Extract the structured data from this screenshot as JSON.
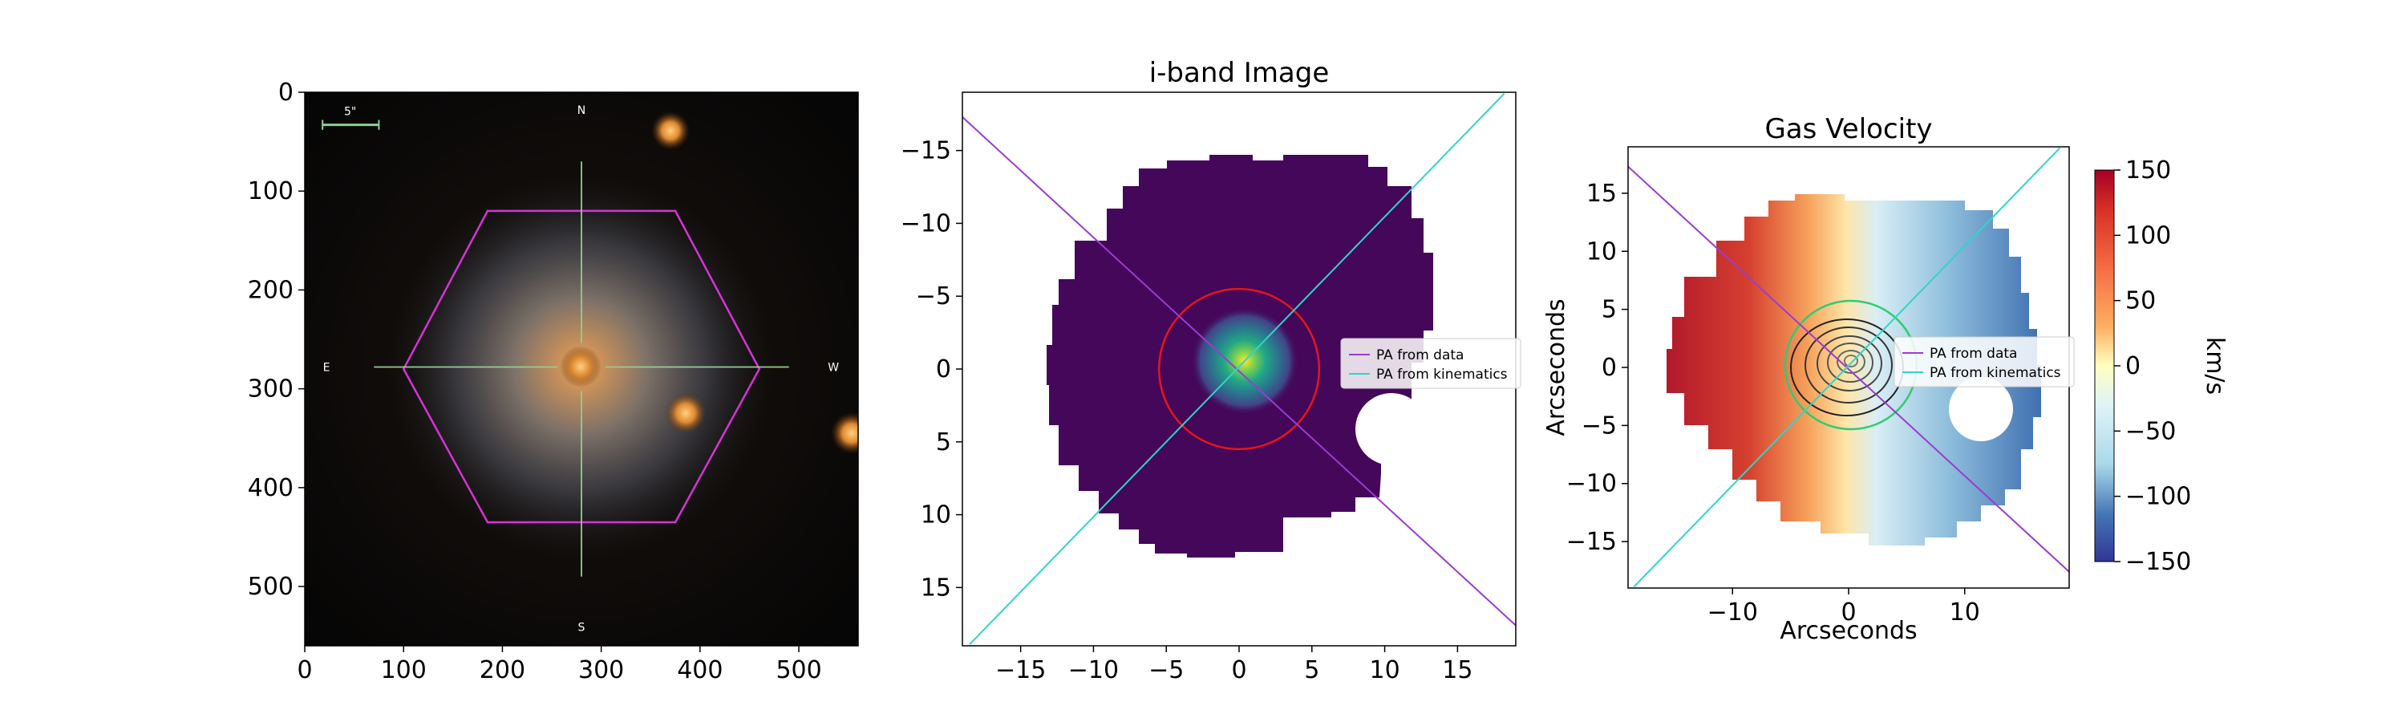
{
  "chart_data": [
    {
      "type": "image",
      "panel": "sdss-cutout",
      "title": "",
      "xlabel": "",
      "ylabel": "",
      "xlim": [
        0,
        560
      ],
      "ylim": [
        560,
        0
      ],
      "xticks": [
        0,
        100,
        200,
        300,
        400,
        500
      ],
      "yticks": [
        0,
        100,
        200,
        300,
        400,
        500
      ],
      "scale_bar_label": "5\"",
      "compass": {
        "north": "N",
        "south": "S",
        "east": "E",
        "west": "W"
      },
      "ifu_hexagon": {
        "color": "#d633d6",
        "vertices": [
          [
            100,
            280
          ],
          [
            185,
            120
          ],
          [
            375,
            120
          ],
          [
            460,
            280
          ],
          [
            375,
            435
          ],
          [
            185,
            435
          ]
        ]
      },
      "crosshair_color": "#8fd18f",
      "galaxy_center": [
        280,
        278
      ],
      "stars": [
        [
          370,
          40
        ],
        [
          385,
          325
        ],
        [
          550,
          345
        ]
      ]
    },
    {
      "type": "heatmap",
      "panel": "i-band",
      "title": "i-band Image",
      "xlabel": "",
      "ylabel": "",
      "xlim": [
        -19,
        19
      ],
      "ylim": [
        19,
        -19
      ],
      "xticks": [
        -15,
        -10,
        -5,
        0,
        5,
        10,
        15
      ],
      "yticks": [
        -15,
        -10,
        -5,
        0,
        5,
        10,
        15
      ],
      "colormap": "viridis",
      "circle": {
        "center": [
          0,
          0
        ],
        "radius": 5.5,
        "color": "#e8141b"
      },
      "lines": [
        {
          "name": "PA from data",
          "color": "#9a3ccf",
          "from": [
            -19,
            -17.3
          ],
          "to": [
            19,
            17.6
          ]
        },
        {
          "name": "PA from kinematics",
          "color": "#30d5c8",
          "from": [
            -18.5,
            18.9
          ],
          "to": [
            18.2,
            -18.9
          ]
        }
      ],
      "legend": [
        "PA from data",
        "PA from kinematics"
      ],
      "legend_placement": "center-right"
    },
    {
      "type": "heatmap",
      "panel": "gas-velocity",
      "title": "Gas Velocity",
      "xlabel": "Arcseconds",
      "ylabel": "Arcseconds",
      "xlim": [
        -19,
        19
      ],
      "ylim": [
        -19,
        19
      ],
      "xticks": [
        -10,
        0,
        10
      ],
      "yticks": [
        -15,
        -10,
        -5,
        0,
        5,
        10,
        15
      ],
      "colormap": "RdYlBu_r",
      "colorbar": {
        "label": "km/s",
        "range": [
          -150,
          150
        ],
        "ticks": [
          150,
          100,
          50,
          0,
          -50,
          -100,
          -150
        ]
      },
      "lines": [
        {
          "name": "PA from data",
          "color": "#9a3ccf",
          "from": [
            -19,
            17.3
          ],
          "to": [
            19,
            -17.6
          ]
        },
        {
          "name": "PA from kinematics",
          "color": "#30d5c8",
          "from": [
            -18.5,
            -18.9
          ],
          "to": [
            18.2,
            18.9
          ]
        }
      ],
      "legend": [
        "PA from data",
        "PA from kinematics"
      ],
      "legend_placement": "center-right"
    }
  ]
}
